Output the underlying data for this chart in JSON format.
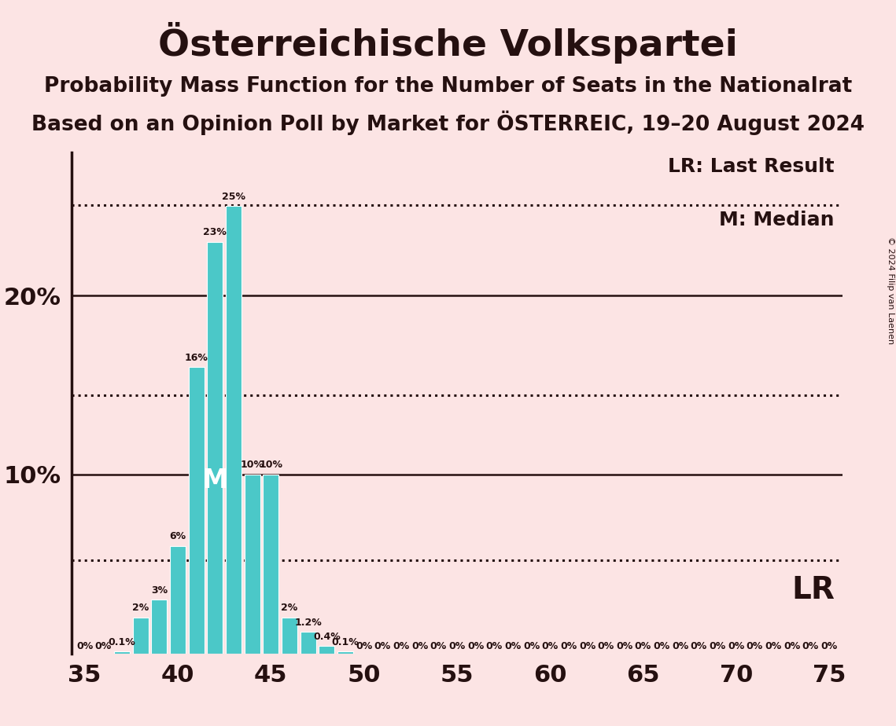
{
  "title": "Österreichische Volkspartei",
  "subtitle1": "Probability Mass Function for the Number of Seats in the Nationalrat",
  "subtitle2": "Based on an Opinion Poll by Market for ÖSTERREIC, 19–20 August 2024",
  "copyright": "© 2024 Filip van Laenen",
  "background_color": "#fce4e4",
  "bar_color": "#4bc8c8",
  "bar_edge_color": "#ffffff",
  "x_min": 35,
  "x_max": 75,
  "y_min": 0,
  "y_max": 0.28,
  "yticks": [
    0.1,
    0.2
  ],
  "ytick_labels": [
    "10%",
    "20%"
  ],
  "xticks": [
    35,
    40,
    45,
    50,
    55,
    60,
    65,
    70,
    75
  ],
  "seats": [
    35,
    36,
    37,
    38,
    39,
    40,
    41,
    42,
    43,
    44,
    45,
    46,
    47,
    48,
    49,
    50,
    51,
    52,
    53,
    54,
    55,
    56,
    57,
    58,
    59,
    60,
    61,
    62,
    63,
    64,
    65,
    66,
    67,
    68,
    69,
    70,
    71,
    72,
    73,
    74,
    75
  ],
  "probs": [
    0.0,
    0.0,
    0.001,
    0.02,
    0.03,
    0.06,
    0.16,
    0.23,
    0.25,
    0.1,
    0.1,
    0.02,
    0.012,
    0.004,
    0.001,
    0.0,
    0.0,
    0.0,
    0.0,
    0.0,
    0.0,
    0.0,
    0.0,
    0.0,
    0.0,
    0.0,
    0.0,
    0.0,
    0.0,
    0.0,
    0.0,
    0.0,
    0.0,
    0.0,
    0.0,
    0.0,
    0.0,
    0.0,
    0.0,
    0.0,
    0.0
  ],
  "bar_labels": [
    "0%",
    "0%",
    "0.1%",
    "2%",
    "3%",
    "6%",
    "16%",
    "23%",
    "25%",
    "10%",
    "10%",
    "2%",
    "1.2%",
    "0.4%",
    "0.1%",
    "0%",
    "0%",
    "0%",
    "0%",
    "0%",
    "0%",
    "0%",
    "0%",
    "0%",
    "0%",
    "0%",
    "0%",
    "0%",
    "0%",
    "0%",
    "0%",
    "0%",
    "0%",
    "0%",
    "0%",
    "0%",
    "0%",
    "0%",
    "0%",
    "0%",
    "0%"
  ],
  "median_seat": 42,
  "lr_line_y": 0.1445,
  "lr_line2_y": 0.2505,
  "lr_label": "LR",
  "median_label": "M",
  "lr_legend_label": "LR: Last Result",
  "median_legend_label": "M: Median",
  "axis_line_color": "#251010",
  "text_color": "#251010",
  "title_fontsize": 34,
  "subtitle_fontsize": 19,
  "label_fontsize": 9,
  "tick_fontsize": 22,
  "legend_fontsize": 18,
  "lr_label_fontsize": 28
}
